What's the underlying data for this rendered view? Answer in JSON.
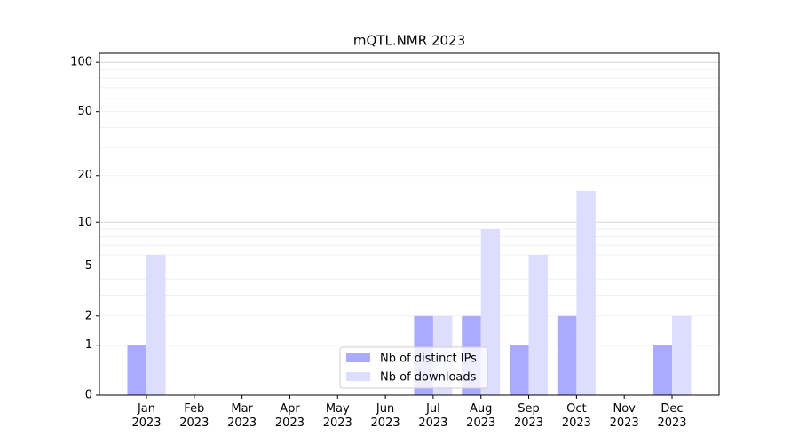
{
  "chart_data": {
    "type": "bar",
    "title": "mQTL.NMR 2023",
    "categories": [
      "Jan\n2023",
      "Feb\n2023",
      "Mar\n2023",
      "Apr\n2023",
      "May\n2023",
      "Jun\n2023",
      "Jul\n2023",
      "Aug\n2023",
      "Sep\n2023",
      "Oct\n2023",
      "Nov\n2023",
      "Dec\n2023"
    ],
    "series": [
      {
        "name": "Nb of distinct IPs",
        "color": "#aaaaff",
        "values": [
          1,
          0,
          0,
          0,
          0,
          0,
          2,
          2,
          1,
          2,
          0,
          1
        ]
      },
      {
        "name": "Nb of downloads",
        "color": "#ddddff",
        "values": [
          6,
          0,
          0,
          0,
          0,
          0,
          2,
          9,
          6,
          16,
          0,
          2
        ]
      }
    ],
    "yscale": "log1p",
    "ylim": [
      0,
      113.5
    ],
    "yticks": [
      0,
      1,
      2,
      5,
      10,
      20,
      50,
      100
    ],
    "yminorticks": [
      3,
      4,
      6,
      7,
      8,
      9,
      30,
      40,
      60,
      70,
      80,
      90
    ],
    "grid": true,
    "legend": "lower center"
  }
}
